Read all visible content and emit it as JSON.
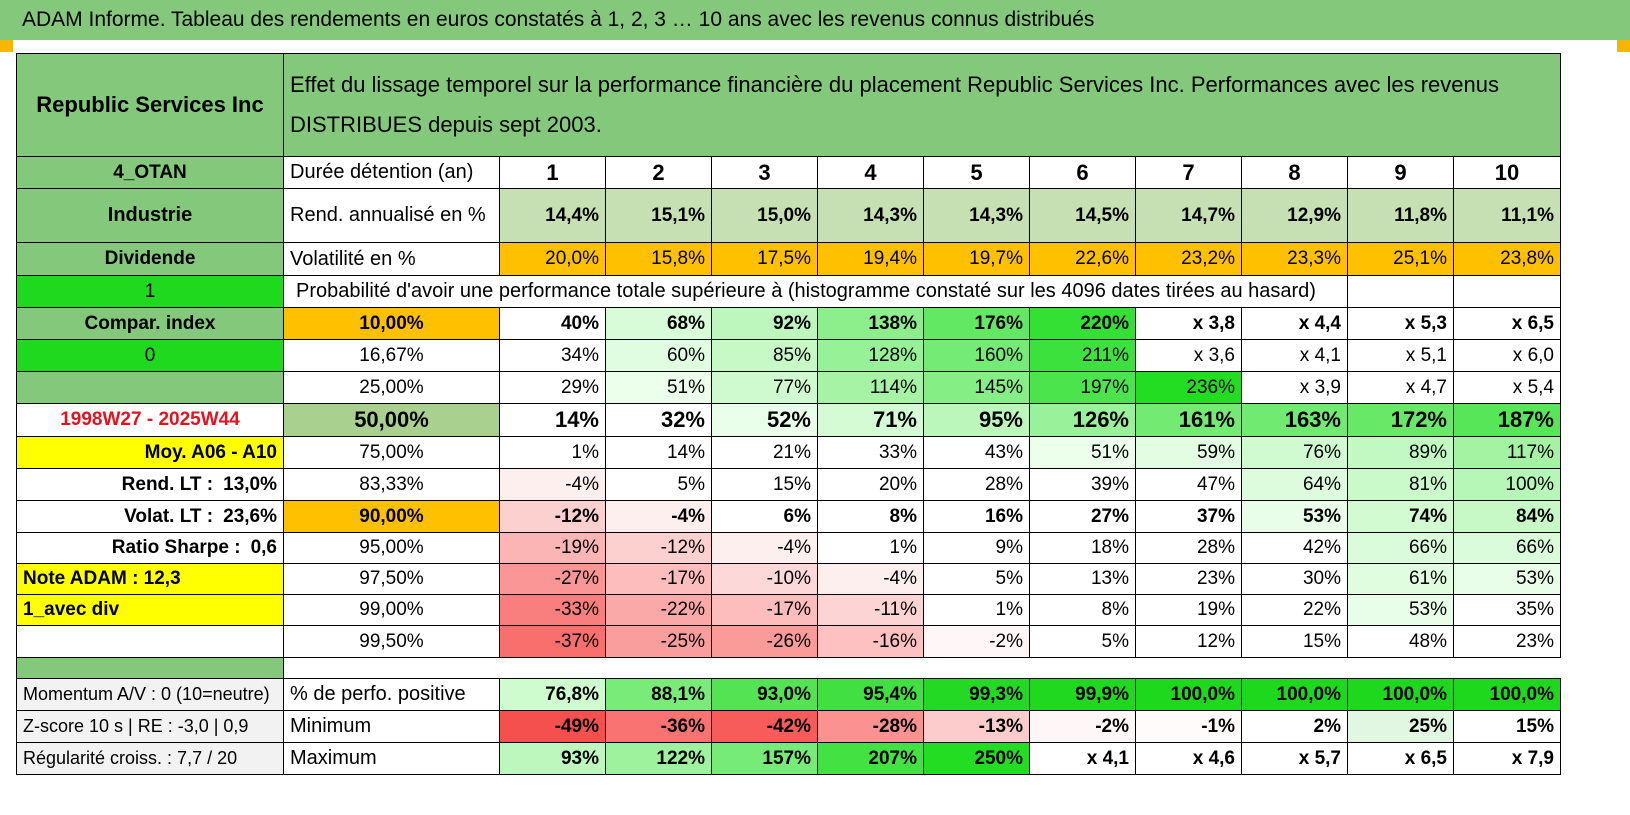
{
  "title": "ADAM Informe. Tableau des rendements en euros constatés à 1, 2, 3 … 10 ans avec les revenus connus distribués",
  "header": {
    "company": "Republic Services Inc",
    "description": "Effet du lissage temporel sur la performance financière du placement Republic Services Inc. Performances avec les revenus DISTRIBUES depuis sept 2003."
  },
  "left_labels": {
    "category": "4_OTAN",
    "sector": "Industrie",
    "dividend": "Dividende",
    "count": "1",
    "compar_index": "Compar. index",
    "compar_value": "0",
    "period": "1998W27 - 2025W44",
    "moy": "Moy. A06 - A10",
    "rend_lt_label": "Rend. LT :",
    "rend_lt_value": "13,0%",
    "volat_lt_label": "Volat. LT :",
    "volat_lt_value": "23,6%",
    "sharpe_label": "Ratio Sharpe :",
    "sharpe_value": "0,6",
    "note": "Note ADAM : 12,3",
    "mode": "1_avec div"
  },
  "years": [
    "1",
    "2",
    "3",
    "4",
    "5",
    "6",
    "7",
    "8",
    "9",
    "10"
  ],
  "rows": {
    "duree_label": "Durée détention (an)",
    "rend_label": "Rend. annualisé en %",
    "rend": [
      "14,4%",
      "15,1%",
      "15,0%",
      "14,3%",
      "14,3%",
      "14,5%",
      "14,7%",
      "12,9%",
      "11,8%",
      "11,1%"
    ],
    "vol_label": "Volatilité en %",
    "vol": [
      "20,0%",
      "15,8%",
      "17,5%",
      "19,4%",
      "19,7%",
      "22,6%",
      "23,2%",
      "23,3%",
      "25,1%",
      "23,8%"
    ],
    "prob_label": "Probabilité d'avoir une performance totale supérieure à (histogramme constaté sur les 4096 dates tirées au hasard)"
  },
  "percentiles": [
    {
      "p": "10,00%",
      "vals": [
        "40%",
        "68%",
        "92%",
        "138%",
        "176%",
        "220%",
        "x 3,8",
        "x 4,4",
        "x 5,3",
        "x 6,5"
      ],
      "bold": true
    },
    {
      "p": "16,67%",
      "vals": [
        "34%",
        "60%",
        "85%",
        "128%",
        "160%",
        "211%",
        "x 3,6",
        "x 4,1",
        "x 5,1",
        "x 6,0"
      ],
      "bold": false
    },
    {
      "p": "25,00%",
      "vals": [
        "29%",
        "51%",
        "77%",
        "114%",
        "145%",
        "197%",
        "236%",
        "x 3,9",
        "x 4,7",
        "x 5,4"
      ],
      "bold": false
    },
    {
      "p": "50,00%",
      "vals": [
        "14%",
        "32%",
        "52%",
        "71%",
        "95%",
        "126%",
        "161%",
        "163%",
        "172%",
        "187%"
      ],
      "bold": true
    },
    {
      "p": "75,00%",
      "vals": [
        "1%",
        "14%",
        "21%",
        "33%",
        "43%",
        "51%",
        "59%",
        "76%",
        "89%",
        "117%"
      ],
      "bold": false
    },
    {
      "p": "83,33%",
      "vals": [
        "-4%",
        "5%",
        "15%",
        "20%",
        "28%",
        "39%",
        "47%",
        "64%",
        "81%",
        "100%"
      ],
      "bold": false
    },
    {
      "p": "90,00%",
      "vals": [
        "-12%",
        "-4%",
        "6%",
        "8%",
        "16%",
        "27%",
        "37%",
        "53%",
        "74%",
        "84%"
      ],
      "bold": true
    },
    {
      "p": "95,00%",
      "vals": [
        "-19%",
        "-12%",
        "-4%",
        "1%",
        "9%",
        "18%",
        "28%",
        "42%",
        "66%",
        "66%"
      ],
      "bold": false
    },
    {
      "p": "97,50%",
      "vals": [
        "-27%",
        "-17%",
        "-10%",
        "-4%",
        "5%",
        "13%",
        "23%",
        "30%",
        "61%",
        "53%"
      ],
      "bold": false
    },
    {
      "p": "99,00%",
      "vals": [
        "-33%",
        "-22%",
        "-17%",
        "-11%",
        "1%",
        "8%",
        "19%",
        "22%",
        "53%",
        "35%"
      ],
      "bold": false
    },
    {
      "p": "99,50%",
      "vals": [
        "-37%",
        "-25%",
        "-26%",
        "-16%",
        "-2%",
        "5%",
        "12%",
        "15%",
        "48%",
        "23%"
      ],
      "bold": false
    }
  ],
  "bottom": [
    {
      "left": "Momentum A/V : 0 (10=neutre)",
      "label": "% de perfo. positive",
      "vals": [
        "76,8%",
        "88,1%",
        "93,0%",
        "95,4%",
        "99,3%",
        "99,9%",
        "100,0%",
        "100,0%",
        "100,0%",
        "100,0%"
      ]
    },
    {
      "left": "Z-score 10 s | RE : -3,0 | 0,9",
      "label": "Minimum",
      "vals": [
        "-49%",
        "-36%",
        "-42%",
        "-28%",
        "-13%",
        "-2%",
        "-1%",
        "2%",
        "25%",
        "15%"
      ]
    },
    {
      "left": "Régularité croiss. : 7,7 / 20",
      "label": "Maximum",
      "vals": [
        "93%",
        "122%",
        "157%",
        "207%",
        "250%",
        "x 4,1",
        "x 4,6",
        "x 5,7",
        "x 6,5",
        "x 7,9"
      ]
    }
  ],
  "colors": {
    "header_green": "#84c97b",
    "bright_green": "#1ed91e",
    "orange": "#ffc000",
    "yellow": "#ffff00",
    "title_red": "#e8121f"
  }
}
